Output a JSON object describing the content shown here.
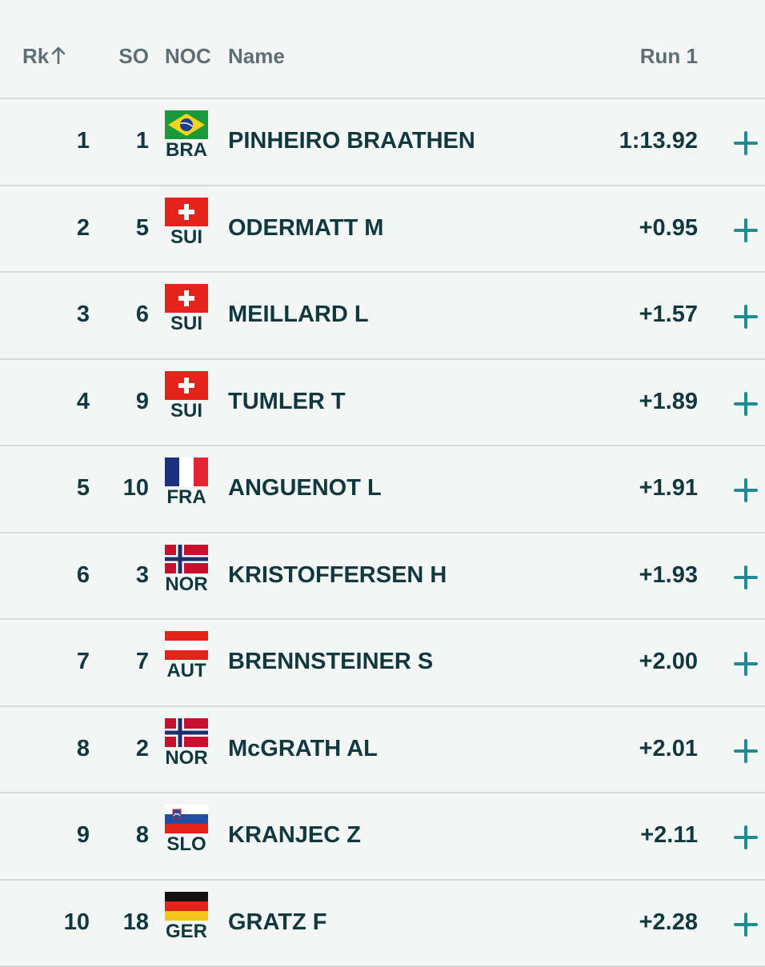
{
  "header": {
    "rank": "Rk",
    "start_order": "SO",
    "noc": "NOC",
    "name": "Name",
    "run": "Run 1",
    "sort_icon": "arrow-up-icon"
  },
  "rows": [
    {
      "rank": "1",
      "so": "1",
      "noc": "BRA",
      "name": "PINHEIRO BRAATHEN",
      "time": "1:13.92"
    },
    {
      "rank": "2",
      "so": "5",
      "noc": "SUI",
      "name": "ODERMATT M",
      "time": "+0.95"
    },
    {
      "rank": "3",
      "so": "6",
      "noc": "SUI",
      "name": "MEILLARD L",
      "time": "+1.57"
    },
    {
      "rank": "4",
      "so": "9",
      "noc": "SUI",
      "name": "TUMLER T",
      "time": "+1.89"
    },
    {
      "rank": "5",
      "so": "10",
      "noc": "FRA",
      "name": "ANGUENOT L",
      "time": "+1.91"
    },
    {
      "rank": "6",
      "so": "3",
      "noc": "NOR",
      "name": "KRISTOFFERSEN H",
      "time": "+1.93"
    },
    {
      "rank": "7",
      "so": "7",
      "noc": "AUT",
      "name": "BRENNSTEINER S",
      "time": "+2.00"
    },
    {
      "rank": "8",
      "so": "2",
      "noc": "NOR",
      "name": "McGRATH AL",
      "time": "+2.01"
    },
    {
      "rank": "9",
      "so": "8",
      "noc": "SLO",
      "name": "KRANJEC Z",
      "time": "+2.11"
    },
    {
      "rank": "10",
      "so": "18",
      "noc": "GER",
      "name": "GRATZ F",
      "time": "+2.28"
    }
  ],
  "colors": {
    "text": "#10393f",
    "header_text": "#5d6f75",
    "accent": "#1f8a8f",
    "divider": "#d5dcdf",
    "background": "#f4f5f5"
  }
}
